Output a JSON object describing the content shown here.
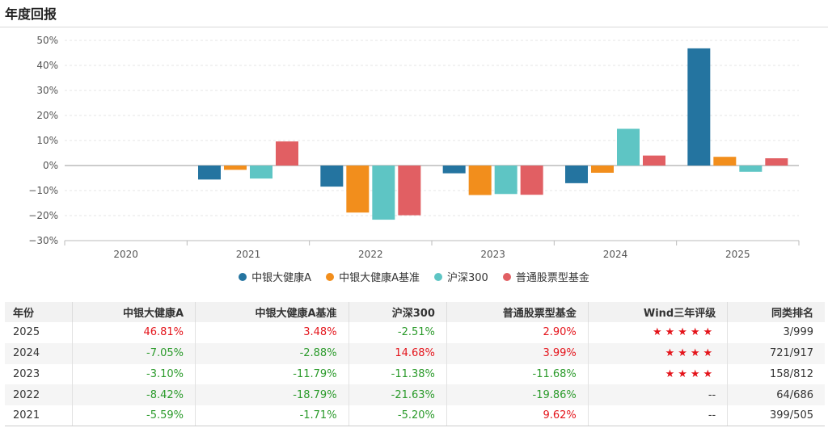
{
  "page": {
    "title": "年度回报"
  },
  "colors": {
    "fund": "#2474a0",
    "benchmark": "#f28e1c",
    "hs300": "#5ec5c4",
    "category": "#e15f63",
    "positive": "#e4141b",
    "negative": "#2a9a2a"
  },
  "chart_data": {
    "type": "bar",
    "categories": [
      "2020",
      "2021",
      "2022",
      "2023",
      "2024",
      "2025"
    ],
    "ylim": [
      -30,
      50
    ],
    "yticks": [
      "50%",
      "40%",
      "30%",
      "20%",
      "10%",
      "0%",
      "−10%",
      "−20%",
      "−30%"
    ],
    "ytick_values": [
      50,
      40,
      30,
      20,
      10,
      0,
      -10,
      -20,
      -30
    ],
    "series": [
      {
        "name": "中银大健康A",
        "color": "#2474a0",
        "values": [
          null,
          -5.59,
          -8.42,
          -3.1,
          -7.05,
          46.81
        ]
      },
      {
        "name": "中银大健康A基准",
        "color": "#f28e1c",
        "values": [
          null,
          -1.71,
          -18.79,
          -11.79,
          -2.88,
          3.48
        ]
      },
      {
        "name": "沪深300",
        "color": "#5ec5c4",
        "values": [
          null,
          -5.2,
          -21.63,
          -11.38,
          14.68,
          -2.51
        ]
      },
      {
        "name": "普通股票型基金",
        "color": "#e15f63",
        "values": [
          null,
          9.62,
          -19.86,
          -11.68,
          3.99,
          2.9
        ]
      }
    ],
    "legend_position": "bottom-center"
  },
  "table": {
    "headers": [
      "年份",
      "中银大健康A",
      "中银大健康A基准",
      "沪深300",
      "普通股票型基金",
      "Wind三年评级",
      "同类排名"
    ],
    "rows": [
      {
        "year": "2025",
        "fund": "46.81%",
        "benchmark": "3.48%",
        "hs300": "-2.51%",
        "category": "2.90%",
        "rating": "★★★★★",
        "rank": "3/999"
      },
      {
        "year": "2024",
        "fund": "-7.05%",
        "benchmark": "-2.88%",
        "hs300": "14.68%",
        "category": "3.99%",
        "rating": "★★★★",
        "rank": "721/917"
      },
      {
        "year": "2023",
        "fund": "-3.10%",
        "benchmark": "-11.79%",
        "hs300": "-11.38%",
        "category": "-11.68%",
        "rating": "★★★★",
        "rank": "158/812"
      },
      {
        "year": "2022",
        "fund": "-8.42%",
        "benchmark": "-18.79%",
        "hs300": "-21.63%",
        "category": "-19.86%",
        "rating": "--",
        "rank": "64/686"
      },
      {
        "year": "2021",
        "fund": "-5.59%",
        "benchmark": "-1.71%",
        "hs300": "-5.20%",
        "category": "9.62%",
        "rating": "--",
        "rank": "399/505"
      }
    ]
  }
}
